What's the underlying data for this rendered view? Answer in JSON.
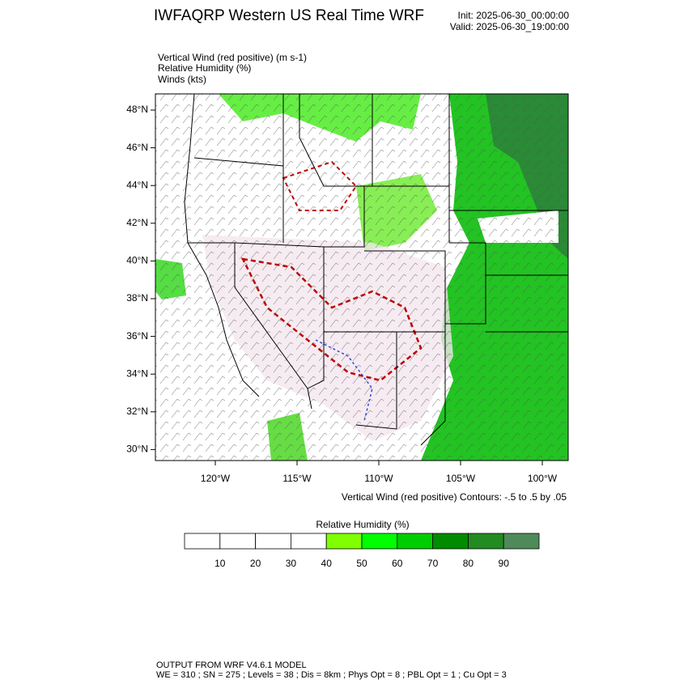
{
  "header": {
    "title": "IWFAQRP Western US Real Time WRF",
    "init": "Init: 2025-06-30_00:00:00",
    "valid": "Valid: 2025-06-30_19:00:00"
  },
  "fields": [
    "Vertical Wind (red positive)   (m s-1)",
    "Relative Humidity   (%)",
    "Winds   (kts)"
  ],
  "map": {
    "lat_labels": [
      "48°N",
      "46°N",
      "44°N",
      "42°N",
      "40°N",
      "38°N",
      "36°N",
      "34°N",
      "32°N",
      "30°N"
    ],
    "lon_labels": [
      "120°W",
      "115°W",
      "110°W",
      "105°W",
      "100°W"
    ],
    "contour_note": "Vertical Wind (red positive) Contours: -.5 to .5 by .05"
  },
  "colorbar": {
    "title": "Relative Humidity  (%)",
    "ticks": [
      10,
      20,
      30,
      40,
      50,
      60,
      70,
      80,
      90
    ],
    "colors": [
      "#ffffff",
      "#ffffff",
      "#ffffff",
      "#ffffff",
      "#7fff00",
      "#00ff00",
      "#00cd00",
      "#008b00",
      "#228b22",
      "#4f8b5a"
    ]
  },
  "footer": {
    "line1": "OUTPUT FROM WRF V4.6.1 MODEL",
    "line2": "WE = 310 ; SN = 275 ; Levels = 38 ; Dis = 8km ; Phys Opt = 8 ; PBL Opt = 1 ; Cu Opt = 3"
  }
}
